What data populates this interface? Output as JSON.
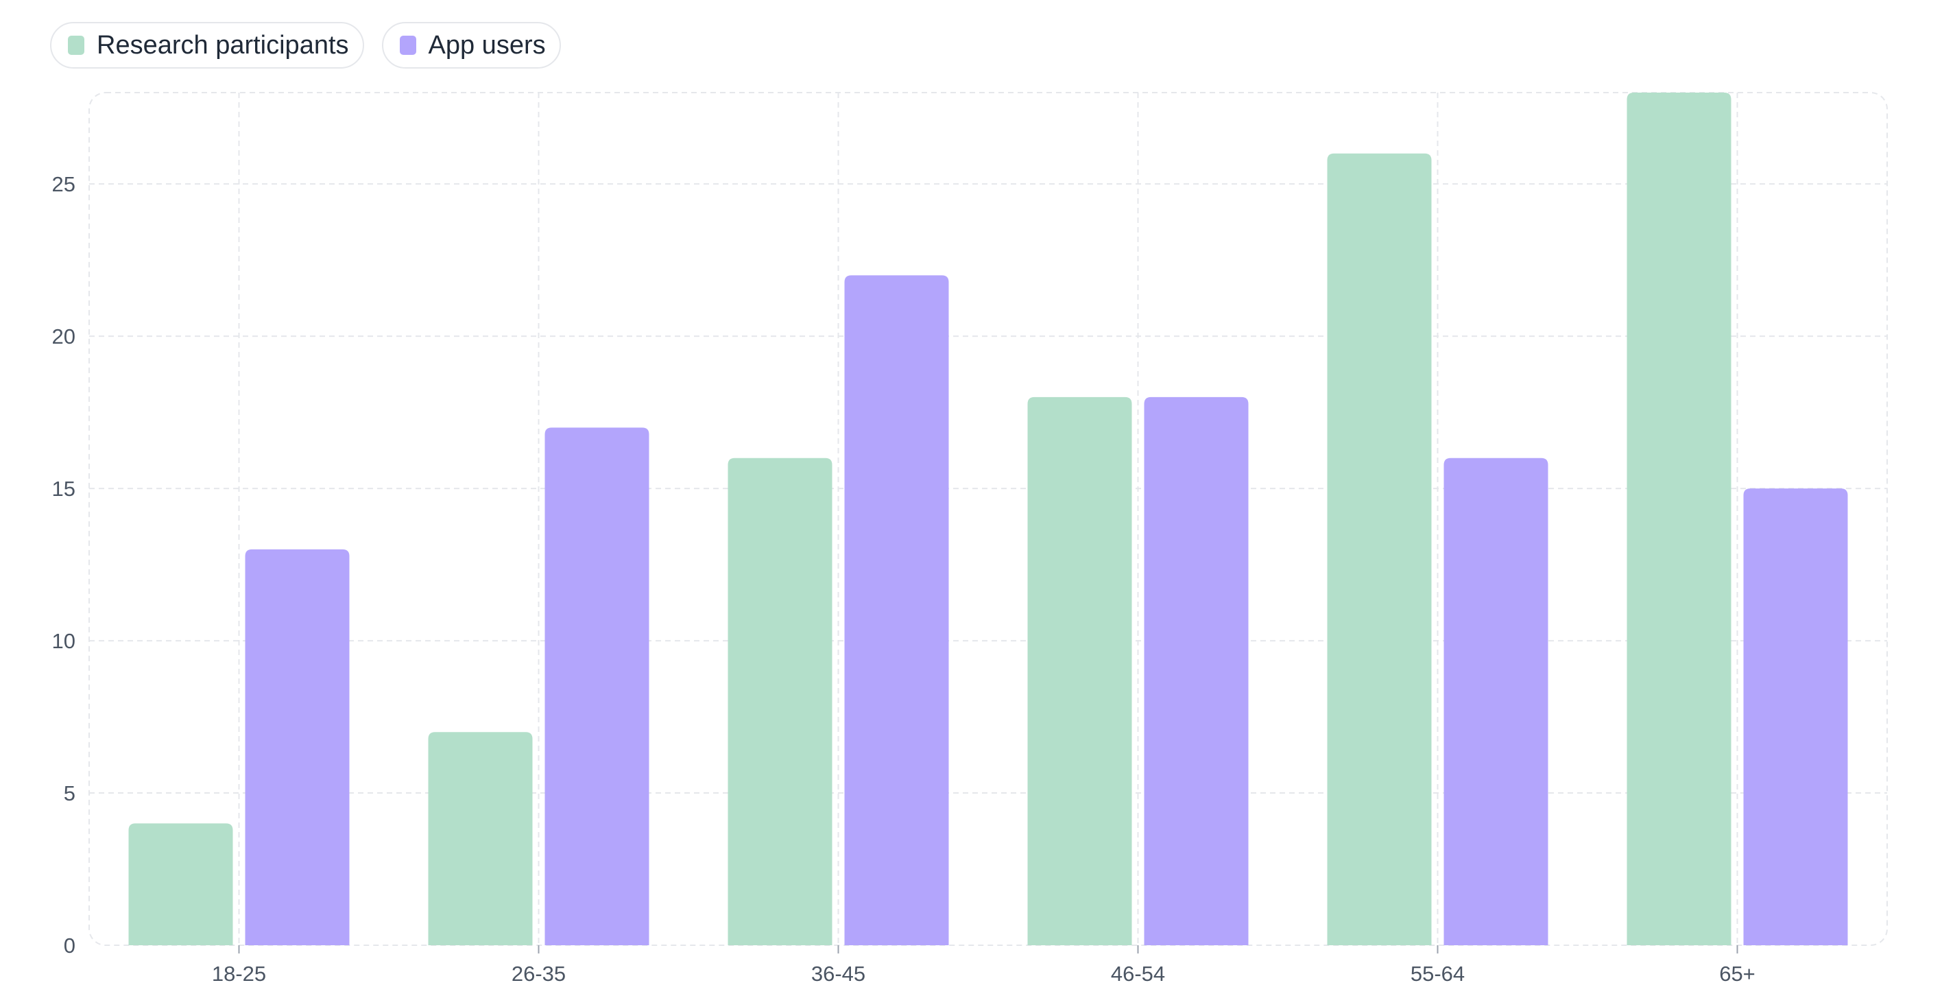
{
  "colors": {
    "research": "#b3dfca",
    "app": "#b3a5fc",
    "grid": "#e5e7eb",
    "axis_text": "#4b5563"
  },
  "legend": [
    {
      "label": "Research participants",
      "color": "#b3dfca"
    },
    {
      "label": "App users",
      "color": "#b3a5fc"
    }
  ],
  "chart_data": {
    "type": "bar",
    "title": "",
    "xlabel": "",
    "ylabel": "",
    "categories": [
      "18-25",
      "26-35",
      "36-45",
      "46-54",
      "55-64",
      "65+"
    ],
    "series": [
      {
        "name": "Research participants",
        "values": [
          4,
          7,
          16,
          18,
          26,
          28
        ],
        "color": "#b3dfca"
      },
      {
        "name": "App users",
        "values": [
          13,
          17,
          22,
          18,
          16,
          15
        ],
        "color": "#b3a5fc"
      }
    ],
    "ylim": [
      0,
      28
    ],
    "yticks": [
      0,
      5,
      10,
      15,
      20,
      25
    ],
    "grid": true,
    "legend_position": "top-left"
  }
}
